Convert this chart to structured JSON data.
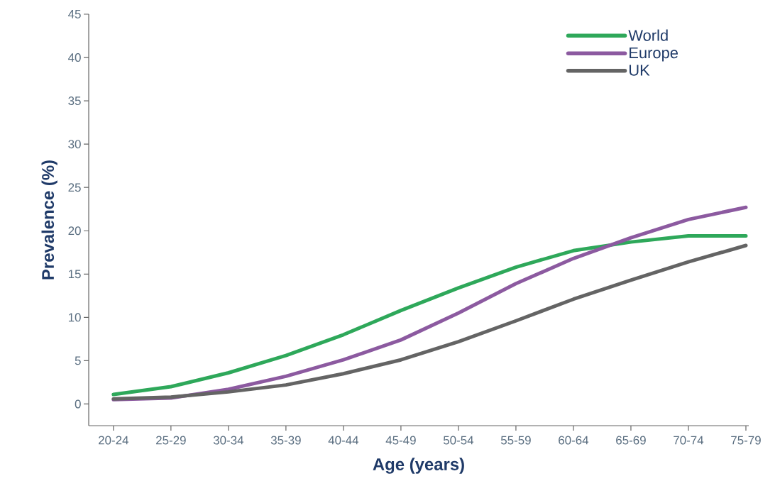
{
  "chart_data": {
    "type": "line",
    "xlabel": "Age (years)",
    "ylabel": "Prevalence (%)",
    "categories": [
      "20-24",
      "25-29",
      "30-34",
      "35-39",
      "40-44",
      "45-49",
      "50-54",
      "55-59",
      "60-64",
      "65-69",
      "70-74",
      "75-79"
    ],
    "series": [
      {
        "name": "World",
        "color": "#2ea85a",
        "values": [
          1.1,
          2.0,
          3.6,
          5.6,
          8.0,
          10.8,
          13.4,
          15.8,
          17.7,
          18.7,
          19.4,
          19.4
        ]
      },
      {
        "name": "Europe",
        "color": "#8c5aa0",
        "values": [
          0.5,
          0.7,
          1.7,
          3.2,
          5.1,
          7.4,
          10.5,
          13.9,
          16.8,
          19.2,
          21.3,
          22.7
        ]
      },
      {
        "name": "UK",
        "color": "#646464",
        "values": [
          0.6,
          0.8,
          1.4,
          2.2,
          3.5,
          5.1,
          7.2,
          9.6,
          12.1,
          14.3,
          16.4,
          18.3
        ]
      }
    ],
    "ylim": [
      -2.5,
      45
    ],
    "yticks": [
      0,
      5,
      10,
      15,
      20,
      25,
      30,
      35,
      40,
      45
    ],
    "legend": "top right",
    "grid": false,
    "marker": "none",
    "line_style": "solid"
  }
}
